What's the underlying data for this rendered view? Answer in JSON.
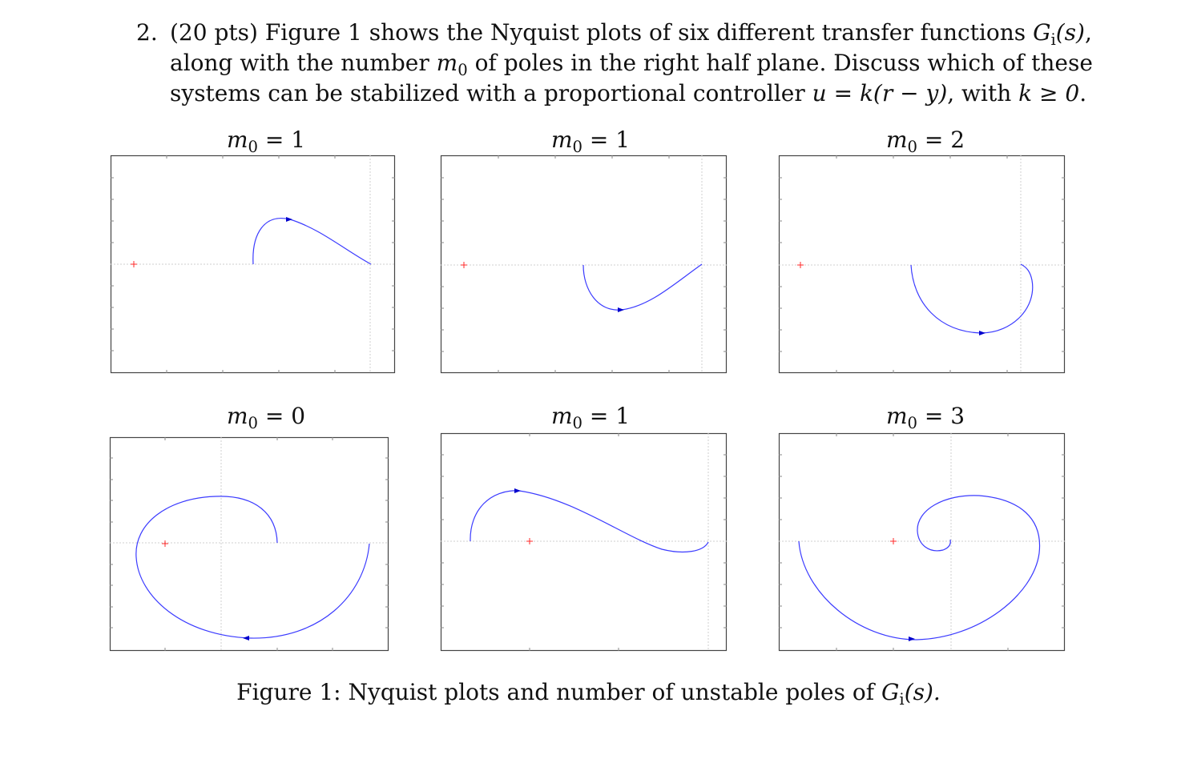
{
  "problem": {
    "number": "2.",
    "points": "(20 pts)",
    "line1_text": "Figure 1 shows the Nyquist plots of six different transfer functions",
    "line1_math": "G_i(s)",
    "line2_text_a": "along with the number",
    "line2_math": "m_0",
    "line2_text_b": "of poles in the right half plane. Discuss which of these",
    "line3_text_a": "systems can be stabilized with a proportional controller",
    "line3_math_a": "u = k(r − y)",
    "line3_text_b": ", with",
    "line3_math_b": "k ≥ 0",
    "line3_end": "."
  },
  "figure": {
    "caption_text": "Figure 1: Nyquist plots and number of unstable poles of",
    "caption_math": "G_i(s).",
    "panels": [
      {
        "title_var": "m",
        "title_sub": "0",
        "title_eq": "= 1"
      },
      {
        "title_var": "m",
        "title_sub": "0",
        "title_eq": "= 1"
      },
      {
        "title_var": "m",
        "title_sub": "0",
        "title_eq": "= 2"
      },
      {
        "title_var": "m",
        "title_sub": "0",
        "title_eq": "= 0"
      },
      {
        "title_var": "m",
        "title_sub": "0",
        "title_eq": "= 1"
      },
      {
        "title_var": "m",
        "title_sub": "0",
        "title_eq": "= 3"
      }
    ]
  },
  "colors": {
    "curve": "#3b3bff",
    "arrow": "#0000cc",
    "critical_point": "#ff2a2a",
    "axis": "#444444",
    "grid": "#d8d8d8"
  },
  "icons": {
    "critical_point": "red-plus-marker",
    "direction": "arrow-head"
  }
}
